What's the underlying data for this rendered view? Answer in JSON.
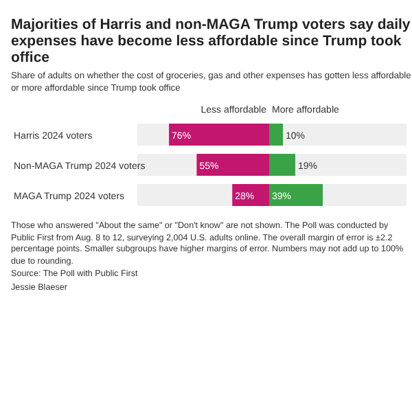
{
  "chart_data": [
    {
      "type": "bar",
      "orientation": "horizontal",
      "title": "Majorities of Harris and non-MAGA Trump voters say daily expenses have become less affordable since Trump took office",
      "subtitle": "Share of adults on whether the cost of groceries, gas and other expenses has gotten less affordable or more affordable since Trump took office",
      "xlabel": "Less affordable",
      "categories": [
        "Harris 2024 voters",
        "Non-MAGA Trump 2024 voters",
        "MAGA Trump 2024 voters"
      ],
      "values": [
        76,
        55,
        28
      ],
      "value_labels": [
        "76%",
        "55%",
        "28%"
      ],
      "color": "#c2166f",
      "xlim": [
        100,
        0
      ],
      "tick_labels": "y",
      "annotations": [
        "Those who answered \"About the same\" or \"Don't know\" are not shown. The Poll was conducted by Public First from Aug. 8 to 12, surveying 2,004 U.S. adults online. The overall margin of error is ±2.2 percentage points. Smaller subgroups have higher margins of error. Numbers may not add up to 100% due to rounding.",
        "Source: The Poll with Public First",
        "Jessie Blaeser"
      ]
    },
    {
      "type": "bar",
      "orientation": "horizontal",
      "xlabel": "More affordable",
      "categories": [
        null,
        null,
        null
      ],
      "values": [
        10,
        19,
        39
      ],
      "value_labels": [
        "10%",
        "19%",
        "39%"
      ],
      "color": "#3aa346",
      "xlim": [
        0,
        100
      ],
      "tick_labels": false
    }
  ]
}
